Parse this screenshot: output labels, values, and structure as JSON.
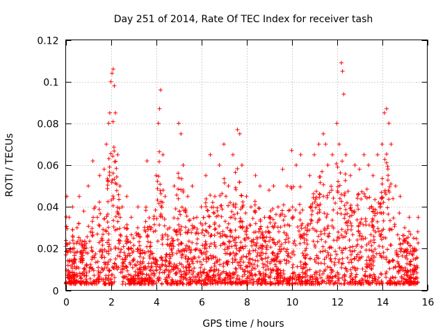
{
  "chart_data": {
    "type": "scatter",
    "title": "Day 251 of 2014, Rate Of TEC Index for receiver tash",
    "xlabel": "GPS time / hours",
    "ylabel": "ROTI / TECUs",
    "xlim": [
      0,
      16
    ],
    "ylim": [
      0,
      0.12
    ],
    "x_ticks": [
      0,
      2,
      4,
      6,
      8,
      10,
      12,
      14,
      16
    ],
    "y_ticks": [
      0,
      0.02,
      0.04,
      0.06,
      0.08,
      0.1,
      0.12
    ],
    "x_tick_labels": [
      "0",
      "2",
      "4",
      "6",
      "8",
      "10",
      "12",
      "14",
      "16"
    ],
    "y_tick_labels": [
      "0",
      "0.02",
      "0.04",
      "0.06",
      "0.08",
      "0.1",
      "0.12"
    ],
    "grid": true,
    "marker": "+",
    "color": "#ff0000",
    "series": [
      {
        "name": "ROTI",
        "note": "dense scatter; representative sampled points (hours, TECU)",
        "x": [
          0.05,
          0.1,
          0.15,
          0.2,
          0.3,
          0.4,
          0.5,
          0.6,
          0.7,
          0.8,
          0.9,
          1.0,
          1.1,
          1.2,
          1.3,
          1.4,
          1.5,
          1.6,
          1.7,
          1.8,
          1.9,
          1.95,
          2.0,
          2.05,
          2.1,
          2.15,
          2.2,
          2.3,
          2.4,
          2.5,
          2.6,
          2.7,
          2.8,
          2.9,
          3.0,
          3.2,
          3.4,
          3.6,
          3.8,
          4.0,
          4.1,
          4.15,
          4.2,
          4.3,
          4.4,
          4.6,
          4.8,
          5.0,
          5.1,
          5.2,
          5.4,
          5.6,
          5.8,
          6.0,
          6.2,
          6.4,
          6.6,
          6.8,
          7.0,
          7.2,
          7.4,
          7.6,
          7.7,
          7.8,
          8.0,
          8.2,
          8.4,
          8.6,
          8.8,
          9.0,
          9.2,
          9.4,
          9.6,
          9.8,
          10.0,
          10.2,
          10.4,
          10.6,
          10.8,
          11.0,
          11.2,
          11.4,
          11.5,
          11.6,
          11.8,
          12.0,
          12.1,
          12.2,
          12.25,
          12.3,
          12.4,
          12.6,
          12.8,
          13.0,
          13.2,
          13.4,
          13.6,
          13.8,
          14.0,
          14.1,
          14.2,
          14.3,
          14.4,
          14.6,
          14.8,
          15.0,
          15.2,
          15.4,
          15.6
        ],
        "y": [
          0.045,
          0.012,
          0.035,
          0.02,
          0.04,
          0.015,
          0.03,
          0.045,
          0.022,
          0.038,
          0.018,
          0.05,
          0.028,
          0.062,
          0.04,
          0.035,
          0.055,
          0.025,
          0.058,
          0.07,
          0.08,
          0.085,
          0.1,
          0.104,
          0.106,
          0.098,
          0.085,
          0.065,
          0.05,
          0.04,
          0.03,
          0.045,
          0.02,
          0.035,
          0.025,
          0.04,
          0.018,
          0.062,
          0.03,
          0.055,
          0.08,
          0.087,
          0.096,
          0.065,
          0.045,
          0.03,
          0.05,
          0.08,
          0.075,
          0.06,
          0.045,
          0.05,
          0.035,
          0.04,
          0.055,
          0.065,
          0.045,
          0.06,
          0.07,
          0.05,
          0.065,
          0.077,
          0.075,
          0.06,
          0.045,
          0.04,
          0.055,
          0.05,
          0.035,
          0.048,
          0.05,
          0.04,
          0.058,
          0.05,
          0.067,
          0.06,
          0.065,
          0.03,
          0.055,
          0.065,
          0.07,
          0.075,
          0.07,
          0.06,
          0.065,
          0.08,
          0.07,
          0.109,
          0.105,
          0.094,
          0.065,
          0.055,
          0.06,
          0.058,
          0.065,
          0.06,
          0.055,
          0.065,
          0.07,
          0.085,
          0.087,
          0.08,
          0.07,
          0.05,
          0.045,
          0.03,
          0.035,
          0.025,
          0.035
        ]
      }
    ]
  }
}
